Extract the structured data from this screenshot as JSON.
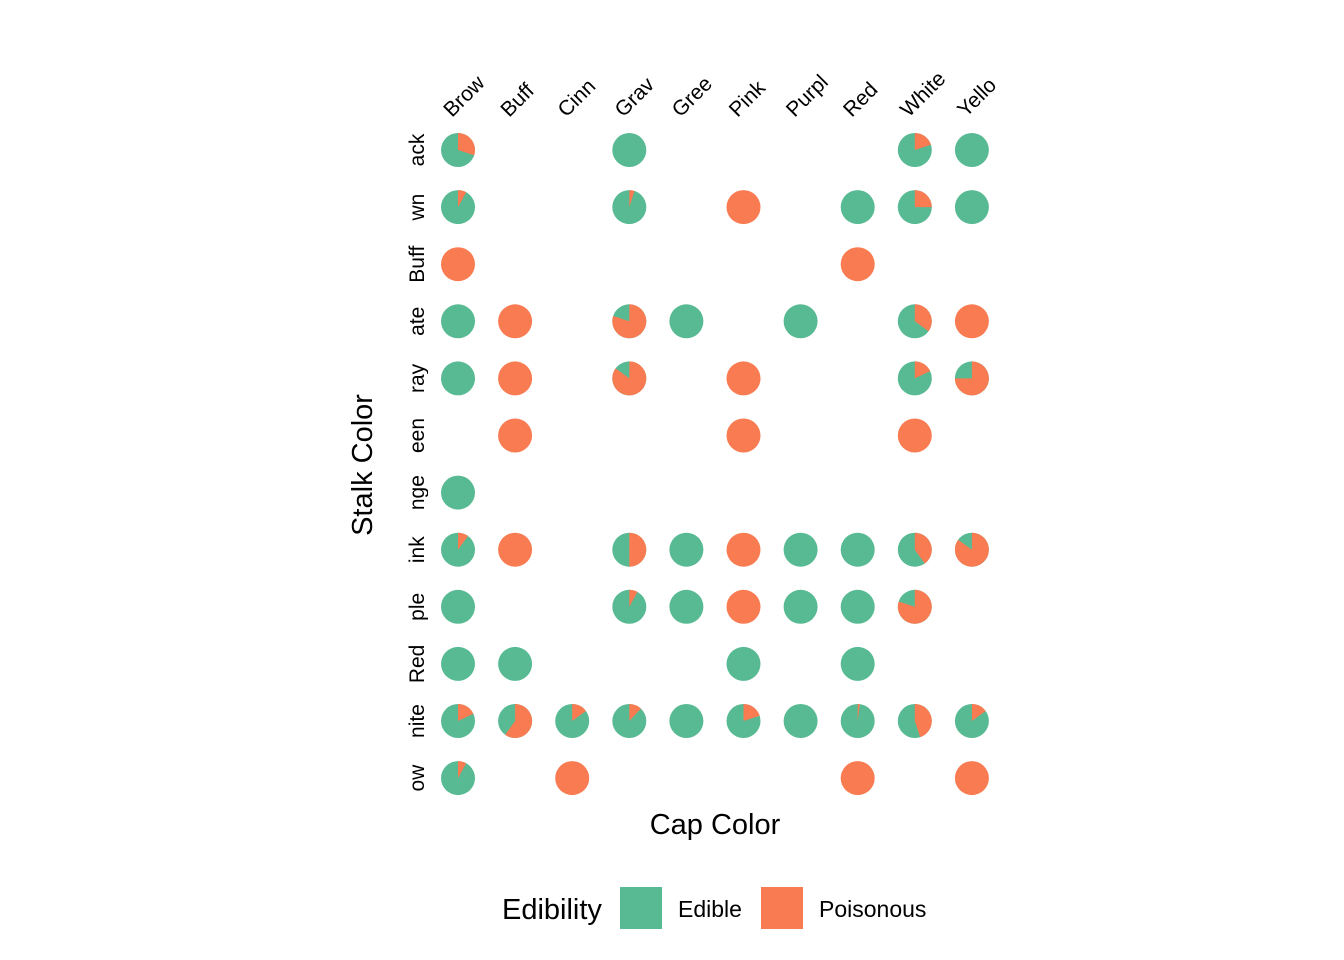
{
  "chart_data": {
    "type": "pie-grid",
    "xlabel": "Cap Color",
    "ylabel": "Stalk Color",
    "x_categories": [
      "Brown",
      "Buff",
      "Cinnamon",
      "Gray",
      "Green",
      "Pink",
      "Purple",
      "Red",
      "White",
      "Yellow"
    ],
    "y_categories": [
      "Black",
      "Brown",
      "Buff",
      "Chocolate",
      "Gray",
      "Green",
      "Orange",
      "Pink",
      "Purple",
      "Red",
      "White",
      "Yellow"
    ],
    "x_tick_labels_visible": [
      "Brow",
      "Buff",
      "Cinn",
      "Grav",
      "Gree",
      "Pink",
      "Purpl",
      "Red",
      "White",
      "Yello"
    ],
    "y_tick_labels_visible": [
      "ack",
      "wn",
      "Buff",
      "ate",
      "ray",
      "een",
      "nge",
      "ink",
      "ple",
      "Red",
      "nite",
      "ow"
    ],
    "series_names": [
      "Edible",
      "Poisonous"
    ],
    "colors": {
      "edible": "#57BA93",
      "poisonous": "#F97B52"
    },
    "note": "cells give the poisonous fraction of each pie (0 = fully edible, 1 = fully poisonous); null = no pie",
    "cells": [
      [
        0.3,
        null,
        null,
        0.0,
        null,
        null,
        null,
        null,
        0.2,
        0.0
      ],
      [
        0.08,
        null,
        null,
        0.05,
        null,
        1.0,
        null,
        0.0,
        0.25,
        0.0
      ],
      [
        1.0,
        null,
        null,
        null,
        null,
        null,
        null,
        1.0,
        null,
        null
      ],
      [
        0.0,
        1.0,
        null,
        0.8,
        0.0,
        null,
        0.0,
        null,
        0.35,
        1.0
      ],
      [
        0.0,
        1.0,
        null,
        0.85,
        null,
        1.0,
        null,
        null,
        0.18,
        0.75
      ],
      [
        null,
        1.0,
        null,
        null,
        null,
        1.0,
        null,
        null,
        1.0,
        null
      ],
      [
        0.0,
        null,
        null,
        null,
        null,
        null,
        null,
        null,
        null,
        null
      ],
      [
        0.1,
        1.0,
        null,
        0.5,
        0.0,
        1.0,
        0.0,
        0.0,
        0.4,
        0.85
      ],
      [
        0.0,
        null,
        null,
        0.08,
        0.0,
        1.0,
        0.0,
        0.0,
        0.8,
        null
      ],
      [
        0.0,
        0.0,
        null,
        null,
        null,
        0.0,
        null,
        0.0,
        null,
        null
      ],
      [
        0.18,
        0.6,
        0.15,
        0.12,
        0.0,
        0.2,
        0.0,
        0.02,
        0.45,
        0.15
      ],
      [
        0.08,
        null,
        1.0,
        null,
        null,
        null,
        null,
        1.0,
        null,
        1.0
      ]
    ]
  },
  "legend": {
    "title": "Edibility",
    "items": [
      {
        "label": "Edible"
      },
      {
        "label": "Poisonous"
      }
    ]
  }
}
